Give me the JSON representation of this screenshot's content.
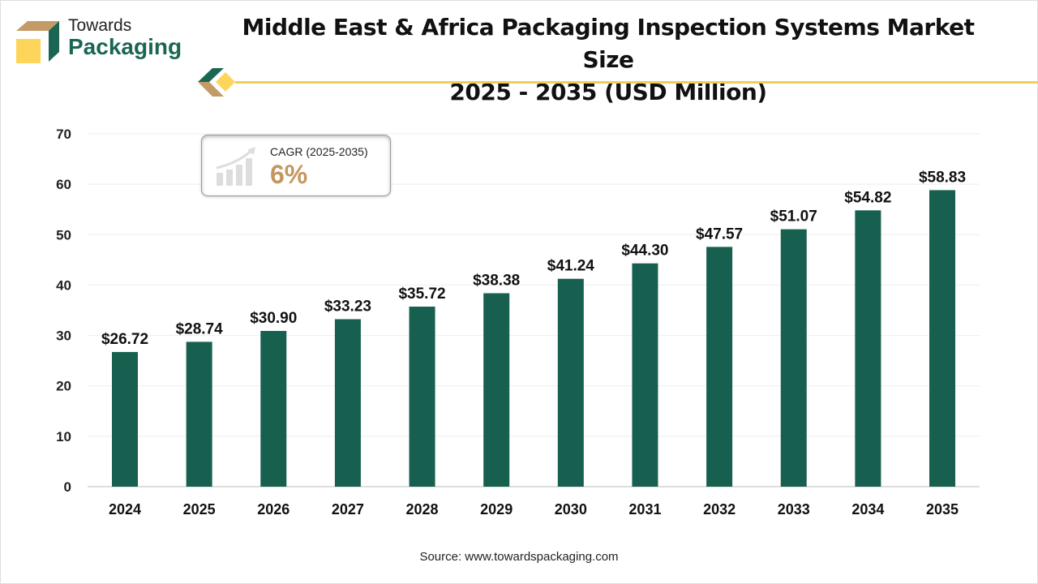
{
  "brand": {
    "line1": "Towards",
    "line2": "Packaging"
  },
  "colors": {
    "bar": "#17604f",
    "accent": "#f3cd56",
    "cagr": "#c4965f"
  },
  "cagr": {
    "label": "CAGR (2025-2035)",
    "value": "6%",
    "icon": "growth-chart-icon"
  },
  "source": "Source: www.towardspackaging.com",
  "chart_data": {
    "type": "bar",
    "title": "Middle East & Africa Packaging Inspection Systems Market Size 2025 - 2035 (USD Million)",
    "title_line1": "Middle East & Africa Packaging Inspection Systems Market Size",
    "title_line2": "2025 - 2035 (USD Million)",
    "categories": [
      "2024",
      "2025",
      "2026",
      "2027",
      "2028",
      "2029",
      "2030",
      "2031",
      "2032",
      "2033",
      "2034",
      "2035"
    ],
    "values": [
      26.72,
      28.74,
      30.9,
      33.23,
      35.72,
      38.38,
      41.24,
      44.3,
      47.57,
      51.07,
      54.82,
      58.83
    ],
    "data_labels": [
      "$26.72",
      "$28.74",
      "$30.90",
      "$33.23",
      "$35.72",
      "$38.38",
      "$41.24",
      "$44.30",
      "$47.57",
      "$51.07",
      "$54.82",
      "$58.83"
    ],
    "yticks": [
      0,
      10,
      20,
      30,
      40,
      50,
      60,
      70
    ],
    "ylim": [
      0,
      70
    ],
    "grid": true,
    "xlabel": "",
    "ylabel": ""
  }
}
